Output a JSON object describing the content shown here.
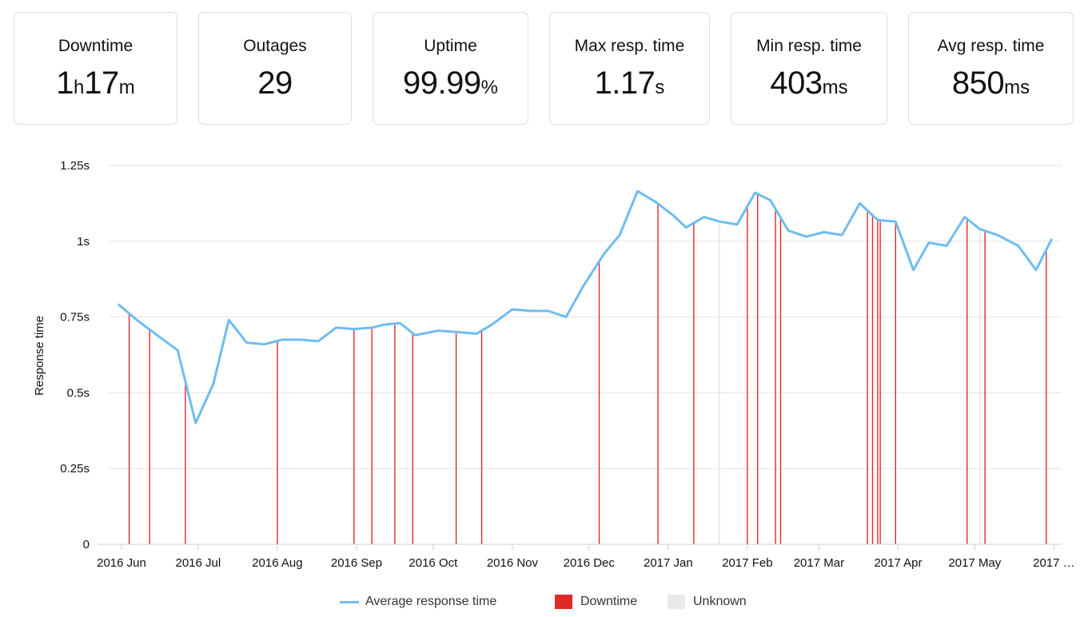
{
  "stats": [
    {
      "label": "Downtime",
      "parts": [
        {
          "v": "1",
          "u": false
        },
        {
          "v": "h",
          "u": true
        },
        {
          "v": "17",
          "u": false
        },
        {
          "v": "m",
          "u": true
        }
      ]
    },
    {
      "label": "Outages",
      "parts": [
        {
          "v": "29",
          "u": false
        }
      ]
    },
    {
      "label": "Uptime",
      "parts": [
        {
          "v": "99.99",
          "u": false
        },
        {
          "v": "%",
          "u": true
        }
      ]
    },
    {
      "label": "Max resp. time",
      "parts": [
        {
          "v": "1.17",
          "u": false
        },
        {
          "v": "s",
          "u": true
        }
      ]
    },
    {
      "label": "Min resp. time",
      "parts": [
        {
          "v": "403",
          "u": false
        },
        {
          "v": "ms",
          "u": true
        }
      ]
    },
    {
      "label": "Avg resp. time",
      "parts": [
        {
          "v": "850",
          "u": false
        },
        {
          "v": "ms",
          "u": true
        }
      ]
    }
  ],
  "chart_data": {
    "type": "line",
    "ylabel": "Response time",
    "ylim": [
      0,
      1.25
    ],
    "y_ticks": [
      {
        "v": 0,
        "label": "0"
      },
      {
        "v": 0.25,
        "label": "0.25s"
      },
      {
        "v": 0.5,
        "label": "0.5s"
      },
      {
        "v": 0.75,
        "label": "0.75s"
      },
      {
        "v": 1,
        "label": "1s"
      },
      {
        "v": 1.25,
        "label": "1.25s"
      }
    ],
    "xlim": [
      "2016-05-27",
      "2017-06-04"
    ],
    "x_ticks": [
      {
        "date": "2016-06-01",
        "label": "2016 Jun"
      },
      {
        "date": "2016-07-01",
        "label": "2016 Jul"
      },
      {
        "date": "2016-08-01",
        "label": "2016 Aug"
      },
      {
        "date": "2016-09-01",
        "label": "2016 Sep"
      },
      {
        "date": "2016-10-01",
        "label": "2016 Oct"
      },
      {
        "date": "2016-11-01",
        "label": "2016 Nov"
      },
      {
        "date": "2016-12-01",
        "label": "2016 Dec"
      },
      {
        "date": "2017-01-01",
        "label": "2017 Jan"
      },
      {
        "date": "2017-02-01",
        "label": "2017 Feb"
      },
      {
        "date": "2017-03-01",
        "label": "2017 Mar"
      },
      {
        "date": "2017-04-01",
        "label": "2017 Apr"
      },
      {
        "date": "2017-05-01",
        "label": "2017 May"
      },
      {
        "date": "2017-06-01",
        "label": "2017 …"
      }
    ],
    "grid": true,
    "legend_position": "bottom",
    "series": [
      {
        "name": "Average response time",
        "color": "#6fbcf0",
        "points": [
          [
            "2016-05-31",
            0.79
          ],
          [
            "2016-06-07",
            0.74
          ],
          [
            "2016-06-15",
            0.69
          ],
          [
            "2016-06-23",
            0.64
          ],
          [
            "2016-06-30",
            0.4
          ],
          [
            "2016-07-07",
            0.53
          ],
          [
            "2016-07-13",
            0.74
          ],
          [
            "2016-07-20",
            0.665
          ],
          [
            "2016-07-27",
            0.66
          ],
          [
            "2016-08-03",
            0.675
          ],
          [
            "2016-08-10",
            0.675
          ],
          [
            "2016-08-17",
            0.67
          ],
          [
            "2016-08-24",
            0.715
          ],
          [
            "2016-08-31",
            0.71
          ],
          [
            "2016-09-07",
            0.715
          ],
          [
            "2016-09-12",
            0.725
          ],
          [
            "2016-09-18",
            0.73
          ],
          [
            "2016-09-24",
            0.69
          ],
          [
            "2016-10-03",
            0.705
          ],
          [
            "2016-10-11",
            0.7
          ],
          [
            "2016-10-18",
            0.695
          ],
          [
            "2016-10-24",
            0.725
          ],
          [
            "2016-11-01",
            0.775
          ],
          [
            "2016-11-08",
            0.77
          ],
          [
            "2016-11-15",
            0.77
          ],
          [
            "2016-11-22",
            0.75
          ],
          [
            "2016-11-29",
            0.855
          ],
          [
            "2016-12-07",
            0.96
          ],
          [
            "2016-12-13",
            1.02
          ],
          [
            "2016-12-20",
            1.165
          ],
          [
            "2016-12-27",
            1.13
          ],
          [
            "2017-01-03",
            1.085
          ],
          [
            "2017-01-08",
            1.045
          ],
          [
            "2017-01-15",
            1.08
          ],
          [
            "2017-01-21",
            1.065
          ],
          [
            "2017-01-28",
            1.055
          ],
          [
            "2017-02-04",
            1.16
          ],
          [
            "2017-02-10",
            1.135
          ],
          [
            "2017-02-17",
            1.035
          ],
          [
            "2017-02-24",
            1.015
          ],
          [
            "2017-03-03",
            1.03
          ],
          [
            "2017-03-10",
            1.02
          ],
          [
            "2017-03-17",
            1.125
          ],
          [
            "2017-03-24",
            1.07
          ],
          [
            "2017-03-31",
            1.065
          ],
          [
            "2017-04-07",
            0.905
          ],
          [
            "2017-04-13",
            0.995
          ],
          [
            "2017-04-20",
            0.985
          ],
          [
            "2017-04-27",
            1.08
          ],
          [
            "2017-05-03",
            1.04
          ],
          [
            "2017-05-10",
            1.02
          ],
          [
            "2017-05-18",
            0.985
          ],
          [
            "2017-05-25",
            0.905
          ],
          [
            "2017-05-31",
            1.005
          ]
        ]
      }
    ],
    "downtime": {
      "name": "Downtime",
      "color": "#e02a2a",
      "dates": [
        "2016-06-04",
        "2016-06-12",
        "2016-06-26",
        "2016-08-01",
        "2016-08-31",
        "2016-09-07",
        "2016-09-16",
        "2016-09-23",
        "2016-10-10",
        "2016-10-20",
        "2016-12-05",
        "2016-12-28",
        "2017-01-11",
        "2017-02-01",
        "2017-02-05",
        "2017-02-12",
        "2017-02-14",
        "2017-03-20",
        "2017-03-22",
        "2017-03-24",
        "2017-03-25",
        "2017-03-31",
        "2017-04-28",
        "2017-05-05",
        "2017-05-29"
      ]
    },
    "unknown": {
      "name": "Unknown",
      "color": "#e9e9e9",
      "dates": [
        "2017-01-21",
        "2017-05-03"
      ]
    }
  }
}
